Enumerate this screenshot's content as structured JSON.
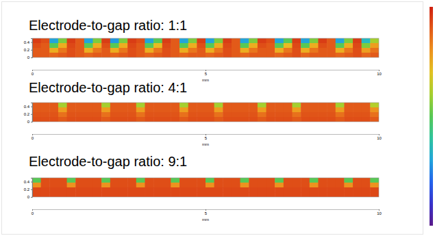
{
  "chart_data": [
    {
      "type": "heatmap",
      "title": "Electrode-to-gap ratio: 1:1",
      "x_label": "mm",
      "xlim": [
        0,
        10
      ],
      "xticks": [
        0,
        5,
        10
      ],
      "ylim": [
        0,
        0.5
      ],
      "yticks": [
        0,
        0.2,
        0.4
      ],
      "color_range": [
        0,
        1
      ],
      "cells": [
        [
          0.95,
          0.92,
          0.3,
          0.55,
          0.95,
          0.9,
          0.3,
          0.55,
          0.95,
          0.28,
          0.55,
          0.95,
          0.92,
          0.3,
          0.5,
          0.95,
          0.9,
          0.3,
          0.55,
          0.95,
          0.3,
          0.55,
          0.95,
          0.9,
          0.3,
          0.55,
          0.95,
          0.92,
          0.3,
          0.5,
          0.95,
          0.3,
          0.55,
          0.95,
          0.9,
          0.3,
          0.55,
          0.95,
          0.35,
          0.6
        ],
        [
          0.92,
          0.9,
          0.5,
          0.75,
          0.93,
          0.9,
          0.5,
          0.75,
          0.92,
          0.5,
          0.75,
          0.93,
          0.9,
          0.5,
          0.72,
          0.93,
          0.9,
          0.5,
          0.75,
          0.92,
          0.5,
          0.75,
          0.93,
          0.9,
          0.5,
          0.75,
          0.92,
          0.9,
          0.5,
          0.72,
          0.93,
          0.5,
          0.75,
          0.92,
          0.9,
          0.5,
          0.75,
          0.93,
          0.55,
          0.78
        ],
        [
          0.9,
          0.9,
          0.75,
          0.85,
          0.92,
          0.9,
          0.75,
          0.85,
          0.9,
          0.75,
          0.85,
          0.92,
          0.9,
          0.75,
          0.85,
          0.92,
          0.9,
          0.75,
          0.85,
          0.9,
          0.75,
          0.85,
          0.92,
          0.9,
          0.75,
          0.85,
          0.9,
          0.9,
          0.75,
          0.85,
          0.92,
          0.75,
          0.85,
          0.9,
          0.9,
          0.75,
          0.85,
          0.92,
          0.78,
          0.86
        ],
        [
          0.9,
          0.9,
          0.88,
          0.9,
          0.92,
          0.9,
          0.88,
          0.9,
          0.9,
          0.88,
          0.9,
          0.92,
          0.9,
          0.88,
          0.9,
          0.92,
          0.9,
          0.88,
          0.9,
          0.9,
          0.88,
          0.9,
          0.92,
          0.9,
          0.88,
          0.9,
          0.9,
          0.9,
          0.88,
          0.9,
          0.92,
          0.88,
          0.9,
          0.9,
          0.9,
          0.88,
          0.9,
          0.92,
          0.88,
          0.9
        ]
      ]
    },
    {
      "type": "heatmap",
      "title": "Electrode-to-gap ratio: 4:1",
      "x_label": "mm",
      "xlim": [
        0,
        10
      ],
      "xticks": [
        0,
        5,
        10
      ],
      "ylim": [
        0,
        0.5
      ],
      "yticks": [
        0,
        0.2,
        0.4
      ],
      "color_range": [
        0,
        1
      ],
      "cells": [
        [
          0.9,
          0.9,
          0.9,
          0.6,
          0.9,
          0.9,
          0.9,
          0.9,
          0.6,
          0.9,
          0.9,
          0.9,
          0.6,
          0.9,
          0.9,
          0.9,
          0.9,
          0.6,
          0.9,
          0.9,
          0.9,
          0.6,
          0.9,
          0.9,
          0.9,
          0.9,
          0.6,
          0.9,
          0.9,
          0.9,
          0.6,
          0.9,
          0.9,
          0.9,
          0.9,
          0.6,
          0.9,
          0.9,
          0.9,
          0.62
        ],
        [
          0.9,
          0.9,
          0.9,
          0.78,
          0.9,
          0.9,
          0.9,
          0.9,
          0.78,
          0.9,
          0.9,
          0.9,
          0.78,
          0.9,
          0.9,
          0.9,
          0.9,
          0.78,
          0.9,
          0.9,
          0.9,
          0.78,
          0.9,
          0.9,
          0.9,
          0.9,
          0.78,
          0.9,
          0.9,
          0.9,
          0.78,
          0.9,
          0.9,
          0.9,
          0.9,
          0.78,
          0.9,
          0.9,
          0.9,
          0.8
        ],
        [
          0.91,
          0.91,
          0.91,
          0.86,
          0.91,
          0.91,
          0.91,
          0.91,
          0.86,
          0.91,
          0.91,
          0.91,
          0.86,
          0.91,
          0.91,
          0.91,
          0.91,
          0.86,
          0.91,
          0.91,
          0.91,
          0.86,
          0.91,
          0.91,
          0.91,
          0.91,
          0.86,
          0.91,
          0.91,
          0.91,
          0.86,
          0.91,
          0.91,
          0.91,
          0.91,
          0.86,
          0.91,
          0.91,
          0.91,
          0.86
        ],
        [
          0.92,
          0.92,
          0.92,
          0.9,
          0.92,
          0.92,
          0.92,
          0.92,
          0.9,
          0.92,
          0.92,
          0.92,
          0.9,
          0.92,
          0.92,
          0.92,
          0.92,
          0.9,
          0.92,
          0.92,
          0.92,
          0.9,
          0.92,
          0.92,
          0.92,
          0.92,
          0.9,
          0.92,
          0.92,
          0.92,
          0.9,
          0.92,
          0.92,
          0.92,
          0.92,
          0.9,
          0.92,
          0.92,
          0.92,
          0.9
        ]
      ]
    },
    {
      "type": "heatmap",
      "title": "Electrode-to-gap ratio: 9:1",
      "x_label": "mm",
      "xlim": [
        0,
        10
      ],
      "xticks": [
        0,
        5,
        10
      ],
      "ylim": [
        0,
        0.5
      ],
      "yticks": [
        0,
        0.2,
        0.4
      ],
      "color_range": [
        0,
        1
      ],
      "cells": [
        [
          0.5,
          0.92,
          0.92,
          0.92,
          0.5,
          0.92,
          0.92,
          0.92,
          0.5,
          0.92,
          0.92,
          0.92,
          0.5,
          0.92,
          0.92,
          0.92,
          0.5,
          0.92,
          0.92,
          0.92,
          0.5,
          0.92,
          0.92,
          0.92,
          0.5,
          0.92,
          0.92,
          0.92,
          0.5,
          0.92,
          0.92,
          0.92,
          0.5,
          0.92,
          0.92,
          0.92,
          0.5,
          0.92,
          0.92,
          0.5
        ],
        [
          0.8,
          0.92,
          0.92,
          0.92,
          0.8,
          0.92,
          0.92,
          0.92,
          0.8,
          0.92,
          0.92,
          0.92,
          0.8,
          0.92,
          0.92,
          0.92,
          0.8,
          0.92,
          0.92,
          0.92,
          0.8,
          0.92,
          0.92,
          0.92,
          0.8,
          0.92,
          0.92,
          0.92,
          0.8,
          0.92,
          0.92,
          0.92,
          0.8,
          0.92,
          0.92,
          0.92,
          0.8,
          0.92,
          0.92,
          0.8
        ],
        [
          0.93,
          0.93,
          0.93,
          0.93,
          0.93,
          0.93,
          0.93,
          0.93,
          0.93,
          0.93,
          0.93,
          0.93,
          0.93,
          0.93,
          0.93,
          0.93,
          0.93,
          0.93,
          0.93,
          0.93,
          0.93,
          0.93,
          0.93,
          0.93,
          0.93,
          0.93,
          0.93,
          0.93,
          0.93,
          0.93,
          0.93,
          0.93,
          0.93,
          0.93,
          0.93,
          0.93,
          0.93,
          0.93,
          0.93,
          0.93
        ],
        [
          0.93,
          0.93,
          0.93,
          0.93,
          0.93,
          0.93,
          0.93,
          0.93,
          0.93,
          0.93,
          0.93,
          0.93,
          0.93,
          0.93,
          0.93,
          0.93,
          0.93,
          0.93,
          0.93,
          0.93,
          0.93,
          0.93,
          0.93,
          0.93,
          0.93,
          0.93,
          0.93,
          0.93,
          0.93,
          0.93,
          0.93,
          0.93,
          0.93,
          0.93,
          0.93,
          0.93,
          0.93,
          0.93,
          0.93,
          0.93
        ]
      ]
    }
  ]
}
